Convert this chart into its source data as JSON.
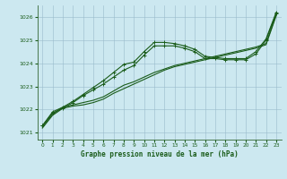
{
  "xlabel": "Graphe pression niveau de la mer (hPa)",
  "bg_color": "#cce8f0",
  "grid_color": "#99bbcc",
  "line_color": "#1a5c1a",
  "xlim": [
    -0.5,
    23.5
  ],
  "ylim": [
    1020.7,
    1026.5
  ],
  "xticks": [
    0,
    1,
    2,
    3,
    4,
    5,
    6,
    7,
    8,
    9,
    10,
    11,
    12,
    13,
    14,
    15,
    16,
    17,
    18,
    19,
    20,
    21,
    22,
    23
  ],
  "yticks": [
    1021,
    1022,
    1023,
    1024,
    1025,
    1026
  ],
  "line1_x": [
    0,
    1,
    2,
    3,
    4,
    5,
    6,
    7,
    8,
    9,
    10,
    11,
    12,
    13,
    14,
    15,
    16,
    17,
    18,
    19,
    20,
    21,
    22,
    23
  ],
  "line1_y": [
    1021.2,
    1021.75,
    1022.05,
    1022.15,
    1022.2,
    1022.3,
    1022.45,
    1022.7,
    1022.9,
    1023.1,
    1023.3,
    1023.5,
    1023.7,
    1023.85,
    1023.95,
    1024.05,
    1024.15,
    1024.25,
    1024.35,
    1024.45,
    1024.55,
    1024.65,
    1024.8,
    1026.05
  ],
  "line2_x": [
    0,
    1,
    2,
    3,
    4,
    5,
    6,
    7,
    8,
    9,
    10,
    11,
    12,
    13,
    14,
    15,
    16,
    17,
    18,
    19,
    20,
    21,
    22,
    23
  ],
  "line2_y": [
    1021.25,
    1021.8,
    1022.1,
    1022.2,
    1022.3,
    1022.4,
    1022.55,
    1022.8,
    1023.05,
    1023.2,
    1023.4,
    1023.6,
    1023.75,
    1023.9,
    1024.0,
    1024.1,
    1024.2,
    1024.3,
    1024.4,
    1024.5,
    1024.6,
    1024.7,
    1024.85,
    1026.1
  ],
  "line3_x": [
    0,
    1,
    2,
    3,
    4,
    5,
    6,
    7,
    8,
    9,
    10,
    11,
    12,
    13,
    14,
    15,
    16,
    17,
    18,
    19,
    20,
    21,
    22,
    23
  ],
  "line3_y": [
    1021.3,
    1021.85,
    1022.05,
    1022.3,
    1022.6,
    1022.85,
    1023.1,
    1023.4,
    1023.7,
    1023.9,
    1024.35,
    1024.75,
    1024.75,
    1024.75,
    1024.65,
    1024.5,
    1024.2,
    1024.2,
    1024.15,
    1024.15,
    1024.15,
    1024.4,
    1025.0,
    1026.15
  ],
  "line4_x": [
    0,
    1,
    2,
    3,
    4,
    5,
    6,
    7,
    8,
    9,
    10,
    11,
    12,
    13,
    14,
    15,
    16,
    17,
    18,
    19,
    20,
    21,
    22,
    23
  ],
  "line4_y": [
    1021.3,
    1021.9,
    1022.1,
    1022.35,
    1022.65,
    1022.95,
    1023.25,
    1023.6,
    1023.95,
    1024.05,
    1024.5,
    1024.9,
    1024.9,
    1024.85,
    1024.75,
    1024.6,
    1024.3,
    1024.25,
    1024.2,
    1024.2,
    1024.2,
    1024.5,
    1025.05,
    1026.2
  ]
}
